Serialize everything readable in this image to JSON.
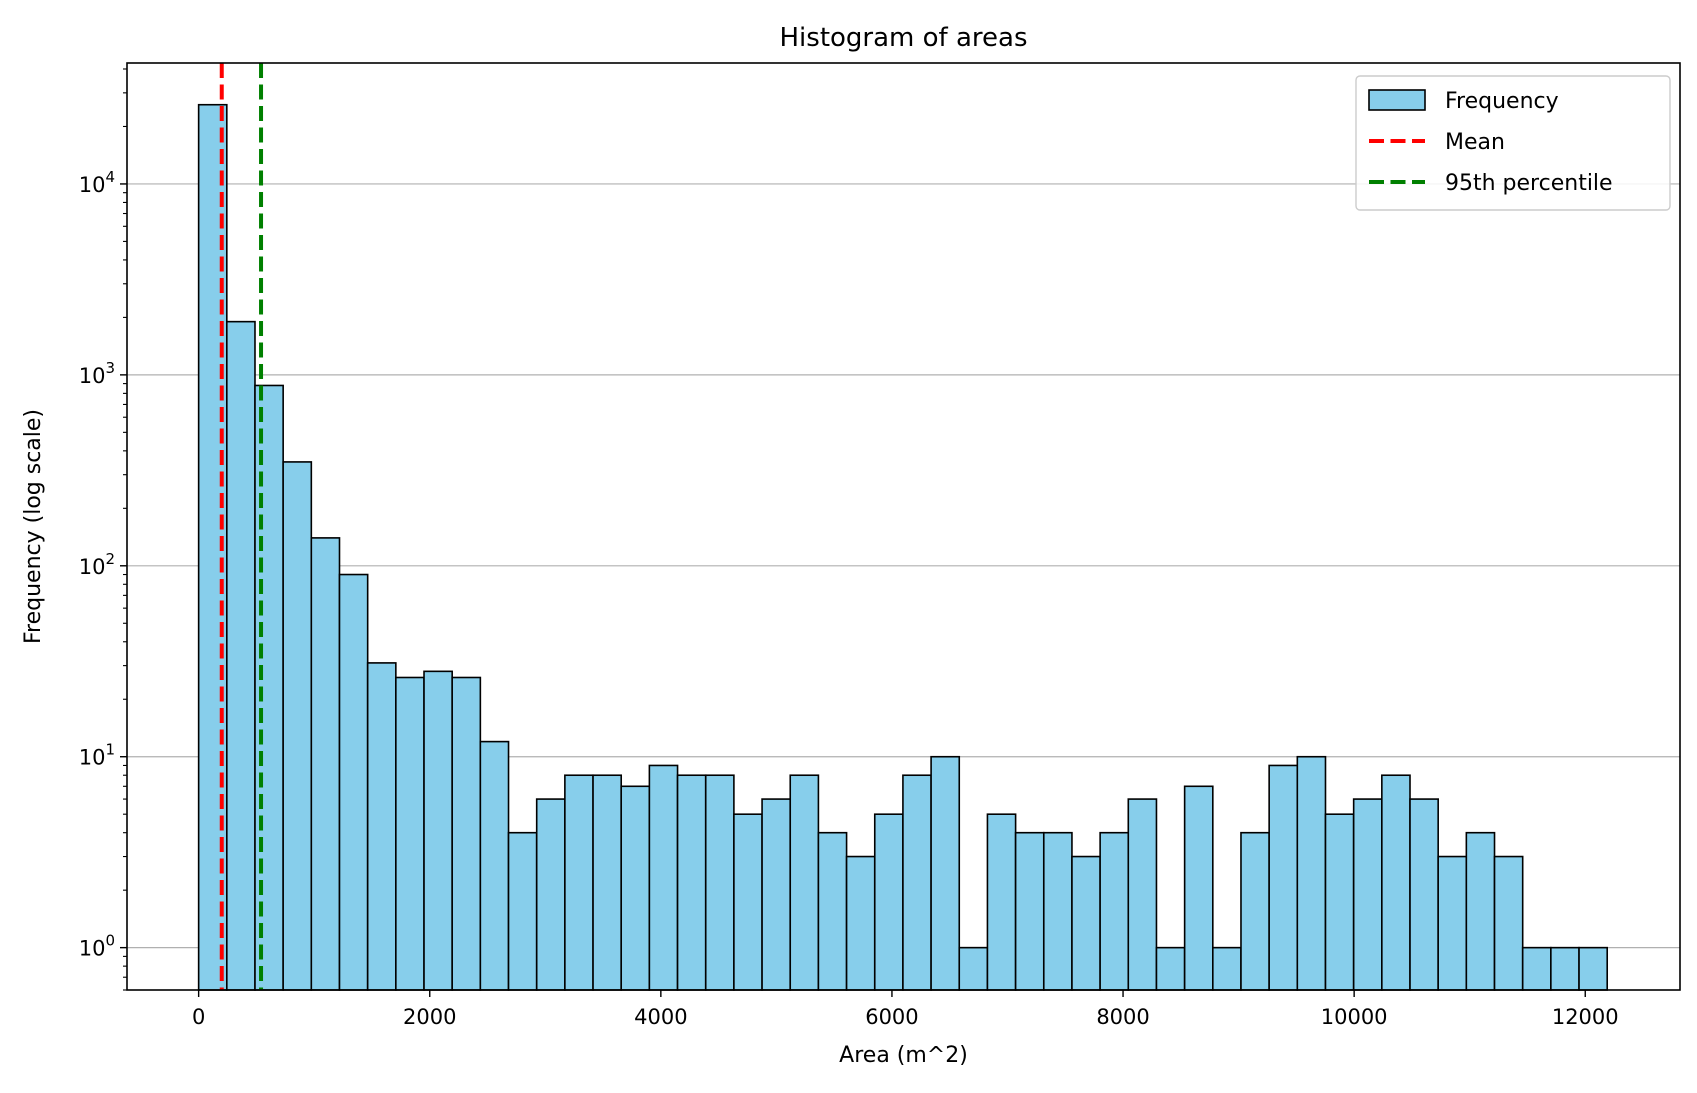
{
  "chart_data": {
    "type": "bar",
    "title": "Histogram of areas",
    "xlabel": "Area (m^2)",
    "ylabel": "Frequency (log scale)",
    "y_scale": "log",
    "ylim": [
      0.6,
      43000
    ],
    "xlim": [
      -620,
      12820
    ],
    "grid": "y-major",
    "legend_placement": "top-right",
    "bar_color": "#87ceeb",
    "bar_edge_color": "#000000",
    "bin_start": 0,
    "bin_width": 243.8,
    "values": [
      26000,
      1900,
      880,
      350,
      140,
      90,
      31,
      26,
      28,
      26,
      12,
      4,
      6,
      8,
      8,
      7,
      9,
      8,
      8,
      5,
      6,
      8,
      4,
      3,
      5,
      8,
      10,
      1,
      5,
      4,
      4,
      3,
      4,
      6,
      1,
      7,
      1,
      4,
      9,
      10,
      5,
      6,
      8,
      6,
      3,
      4,
      3,
      1,
      1,
      1
    ],
    "x_ticks": [
      0,
      2000,
      4000,
      6000,
      8000,
      10000,
      12000
    ],
    "x_tick_labels": [
      "0",
      "2000",
      "4000",
      "6000",
      "8000",
      "10000",
      "12000"
    ],
    "y_ticks": [
      1,
      10,
      100,
      1000,
      10000
    ],
    "y_tick_mantissa": "10",
    "y_tick_exponents": [
      "0",
      "1",
      "2",
      "3",
      "4"
    ],
    "lines": [
      {
        "name": "Mean",
        "x": 200,
        "color": "#ff0000",
        "style": "dashed"
      },
      {
        "name": "95th percentile",
        "x": 540,
        "color": "#008000",
        "style": "dashed"
      }
    ],
    "legend": [
      {
        "label": "Frequency",
        "kind": "patch",
        "color": "#87ceeb"
      },
      {
        "label": "Mean",
        "kind": "line",
        "color": "#ff0000"
      },
      {
        "label": "95th percentile",
        "kind": "line",
        "color": "#008000"
      }
    ]
  }
}
